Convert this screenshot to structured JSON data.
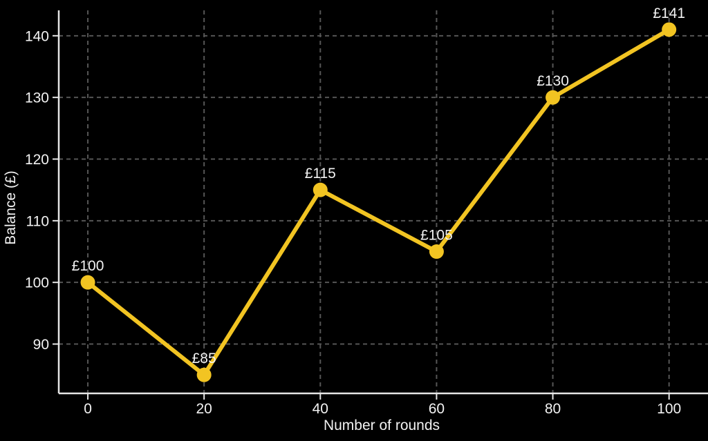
{
  "chart_data": {
    "type": "line",
    "title": "",
    "xlabel": "Number of rounds",
    "ylabel": "Balance (£)",
    "x": [
      0,
      20,
      40,
      60,
      80,
      100
    ],
    "values": [
      100,
      85,
      115,
      105,
      130,
      141
    ],
    "point_labels": [
      "£100",
      "£85",
      "£115",
      "£105",
      "£130",
      "£141"
    ],
    "x_ticks": [
      0,
      20,
      40,
      60,
      80,
      100
    ],
    "x_tick_labels": [
      "0",
      "20",
      "40",
      "60",
      "80",
      "100"
    ],
    "y_ticks": [
      90,
      100,
      110,
      120,
      130,
      140
    ],
    "y_tick_labels": [
      "90",
      "100",
      "110",
      "120",
      "130",
      "140"
    ],
    "xlim": [
      -5,
      106.7
    ],
    "ylim": [
      82,
      145.8
    ],
    "grid": "dashed",
    "legend": "none",
    "colors": {
      "background": "#000000",
      "line": "#F2C422",
      "marker": "#F2C422",
      "grid": "#565656",
      "axis": "#e6e6e6",
      "text": "#f2f2f2"
    }
  }
}
